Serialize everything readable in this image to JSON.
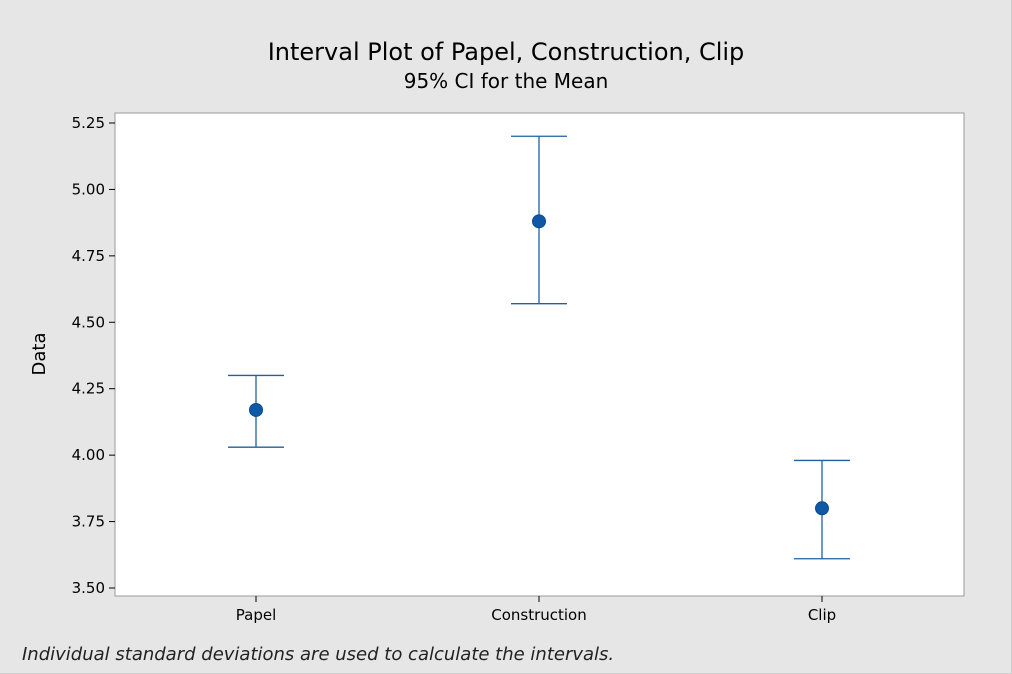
{
  "chart_data": {
    "type": "interval",
    "title": "Interval Plot of Papel, Construction, Clip",
    "subtitle": "95% CI for the Mean",
    "xlabel": "",
    "ylabel": "Data",
    "ylim": [
      3.5,
      5.25
    ],
    "yticks": [
      "3.50",
      "3.75",
      "4.00",
      "4.25",
      "4.50",
      "4.75",
      "5.00",
      "5.25"
    ],
    "ytick_values": [
      3.5,
      3.75,
      4.0,
      4.25,
      4.5,
      4.75,
      5.0,
      5.25
    ],
    "categories": [
      "Papel",
      "Construction",
      "Clip"
    ],
    "means": [
      4.17,
      4.88,
      3.8
    ],
    "lower": [
      4.03,
      4.57,
      3.61
    ],
    "upper": [
      4.3,
      5.2,
      3.98
    ],
    "grid": false,
    "footnote": "Individual standard deviations are used to calculate the intervals.",
    "colors": {
      "marker": "#0f58a6",
      "line": "#1f5fa3",
      "frame_bg": "#e6e6e6",
      "plot_bg": "#ffffff",
      "plot_border": "#9a9a9a"
    }
  }
}
